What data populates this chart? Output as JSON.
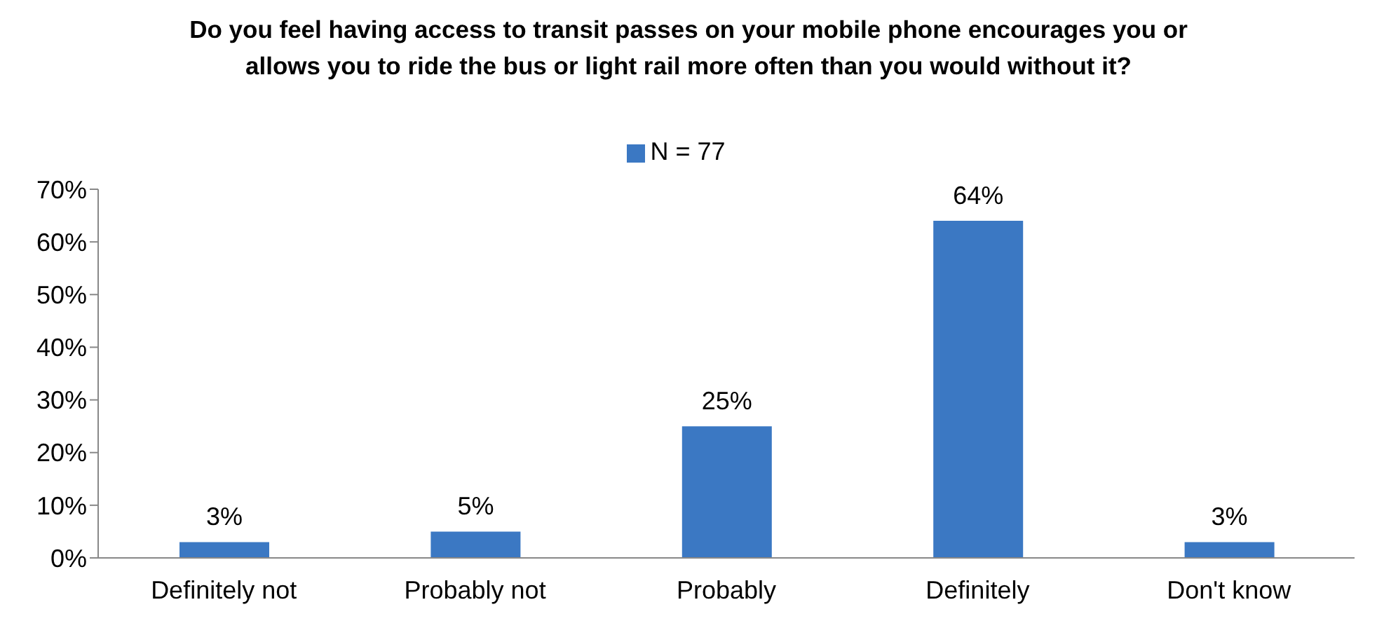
{
  "chart_data": {
    "type": "bar",
    "title": "Do you feel having access to transit passes on your mobile phone encourages you or allows you to ride the bus or light rail more often than you would without it?",
    "categories": [
      "Definitely not",
      "Probably not",
      "Probably",
      "Definitely",
      "Don't know"
    ],
    "series": [
      {
        "name": "N = 77",
        "color": "#3b78c3",
        "values": [
          3,
          5,
          25,
          64,
          3
        ],
        "value_labels": [
          "3%",
          "5%",
          "25%",
          "64%",
          "3%"
        ]
      }
    ],
    "ylim": [
      0,
      70
    ],
    "yticks": [
      {
        "value": 0,
        "label": "0%"
      },
      {
        "value": 10,
        "label": "10%"
      },
      {
        "value": 20,
        "label": "20%"
      },
      {
        "value": 30,
        "label": "30%"
      },
      {
        "value": 40,
        "label": "40%"
      },
      {
        "value": 50,
        "label": "50%"
      },
      {
        "value": 60,
        "label": "60%"
      },
      {
        "value": 70,
        "label": "70%"
      }
    ],
    "grid": false,
    "legend": "top"
  }
}
